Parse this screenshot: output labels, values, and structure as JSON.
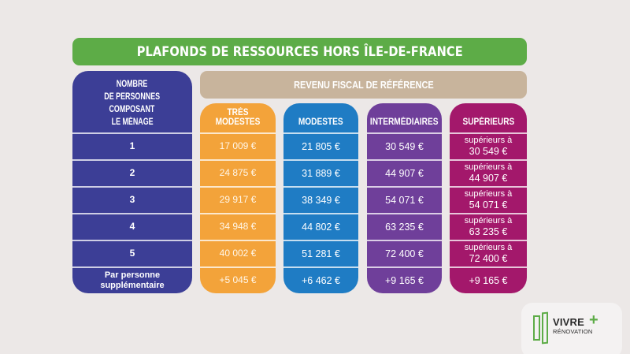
{
  "title": "PLAFONDS DE RESSOURCES HORS ÎLE-DE-FRANCE",
  "subtitle": "REVENU FISCAL DE RÉFÉRENCE",
  "persons_column": {
    "header_lines": [
      "NOMBRE",
      "DE PERSONNES",
      "COMPOSANT",
      "LE MÉNAGE"
    ],
    "rows": [
      "1",
      "2",
      "3",
      "4",
      "5"
    ],
    "extra_lines": [
      "Par personne",
      "supplémentaire"
    ]
  },
  "categories": [
    {
      "label": "TRÈS MODESTES",
      "color": "#f3a33a",
      "values": [
        "17 009 €",
        "24 875 €",
        "29 917 €",
        "34 948 €",
        "40 002 €"
      ],
      "extra": "+5 045 €"
    },
    {
      "label": "MODESTES",
      "color": "#1f7cc4",
      "values": [
        "21 805 €",
        "31 889 €",
        "38 349 €",
        "44 802 €",
        "51 281 €"
      ],
      "extra": "+6 462 €"
    },
    {
      "label": "INTERMÉDIAIRES",
      "color": "#6f3f9a",
      "values": [
        "30 549 €",
        "44 907 €",
        "54 071 €",
        "63 235 €",
        "72 400 €"
      ],
      "extra": "+9 165 €"
    },
    {
      "label": "SUPÉRIEURS",
      "color": "#a3186b",
      "prefix": "supérieurs à",
      "values": [
        "30 549 €",
        "44 907 €",
        "54 071 €",
        "63 235 €",
        "72 400 €"
      ],
      "extra": "+9 165 €"
    }
  ],
  "colors": {
    "title_bar": "#5dac47",
    "subtitle_bar": "#c8b49c",
    "persons_column": "#3c3e96",
    "background": "#ece8e7"
  },
  "logo": {
    "line1": "VIVRE",
    "plus": "+",
    "line2": "RÉNOVATION",
    "icon": "door-icon"
  }
}
